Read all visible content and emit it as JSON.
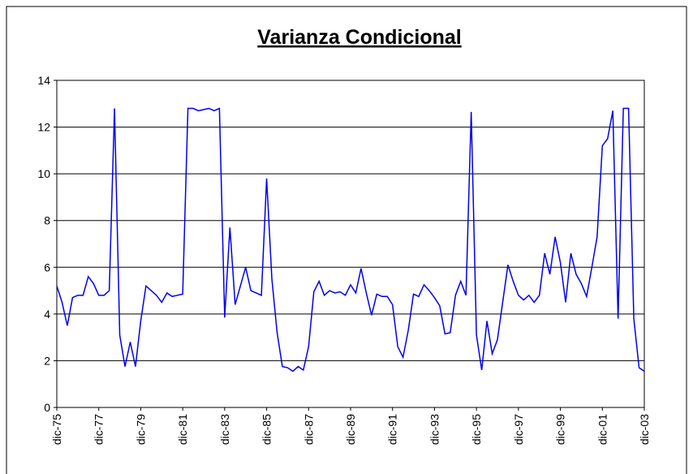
{
  "chart_data": {
    "type": "line",
    "title": "Varianza Condicional",
    "categories": [
      "dic-75",
      null,
      null,
      null,
      null,
      null,
      null,
      null,
      "dic-77",
      null,
      null,
      null,
      null,
      null,
      null,
      null,
      "dic-79",
      null,
      null,
      null,
      null,
      null,
      null,
      null,
      "dic-81",
      null,
      null,
      null,
      null,
      null,
      null,
      null,
      "dic-83",
      null,
      null,
      null,
      null,
      null,
      null,
      null,
      "dic-85",
      null,
      null,
      null,
      null,
      null,
      null,
      null,
      "dic-87",
      null,
      null,
      null,
      null,
      null,
      null,
      null,
      "dic-89",
      null,
      null,
      null,
      null,
      null,
      null,
      null,
      "dic-91",
      null,
      null,
      null,
      null,
      null,
      null,
      null,
      "dic-93",
      null,
      null,
      null,
      null,
      null,
      null,
      null,
      "dic-95",
      null,
      null,
      null,
      null,
      null,
      null,
      null,
      "dic-97",
      null,
      null,
      null,
      null,
      null,
      null,
      null,
      "dic-99",
      null,
      null,
      null,
      null,
      null,
      null,
      null,
      "dic-01",
      null,
      null,
      null,
      null,
      null,
      null,
      null,
      "dic-03"
    ],
    "values": [
      5.2,
      4.5,
      3.5,
      4.7,
      4.8,
      4.8,
      5.6,
      5.3,
      4.8,
      4.8,
      5.0,
      12.8,
      3.1,
      1.75,
      2.8,
      1.75,
      3.7,
      5.2,
      5.0,
      4.8,
      4.5,
      4.9,
      4.75,
      4.8,
      4.85,
      12.8,
      12.8,
      12.7,
      12.75,
      12.8,
      12.7,
      12.8,
      3.85,
      7.7,
      4.4,
      5.2,
      6.0,
      5.0,
      4.9,
      4.8,
      9.8,
      5.5,
      3.2,
      1.75,
      1.7,
      1.55,
      1.75,
      1.6,
      2.6,
      4.95,
      5.4,
      4.8,
      5.0,
      4.9,
      4.95,
      4.8,
      5.25,
      4.9,
      5.95,
      4.9,
      3.95,
      4.85,
      4.75,
      4.75,
      4.4,
      2.6,
      2.15,
      3.3,
      4.85,
      4.75,
      5.25,
      5.0,
      4.7,
      4.35,
      3.15,
      3.2,
      4.8,
      5.4,
      4.8,
      12.65,
      3.1,
      1.6,
      3.7,
      2.3,
      2.9,
      4.5,
      6.1,
      5.4,
      4.8,
      4.6,
      4.8,
      4.5,
      4.8,
      6.6,
      5.7,
      7.3,
      6.2,
      4.5,
      6.6,
      5.7,
      5.3,
      4.75,
      6.0,
      7.3,
      11.2,
      11.5,
      12.7,
      3.8,
      12.8,
      12.8,
      3.8,
      1.7,
      1.55
    ],
    "color": "#0000ee",
    "ylim": [
      0,
      14
    ],
    "yticks": [
      0,
      2,
      4,
      6,
      8,
      10,
      12,
      14
    ],
    "grid": true
  }
}
